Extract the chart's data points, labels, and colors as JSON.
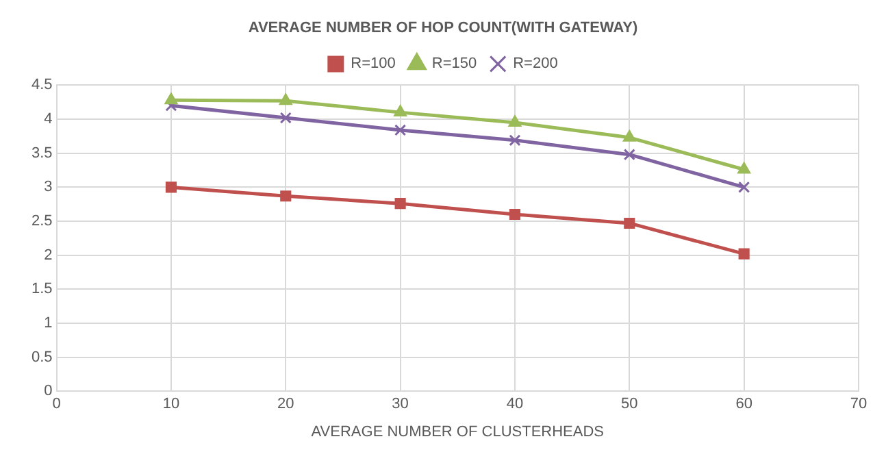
{
  "chart_data": {
    "type": "line",
    "title": "AVERAGE NUMBER OF HOP COUNT(WITH GATEWAY)",
    "xlabel": "AVERAGE NUMBER OF CLUSTERHEADS",
    "x": [
      10,
      20,
      30,
      40,
      50,
      60
    ],
    "series": [
      {
        "name": "R=100",
        "color": "#c0504d",
        "marker": "square",
        "values": [
          3,
          2.87,
          2.76,
          2.6,
          2.47,
          2.02
        ]
      },
      {
        "name": "R=150",
        "color": "#9bbb59",
        "marker": "triangle",
        "values": [
          4.28,
          4.27,
          4.1,
          3.95,
          3.73,
          3.26
        ]
      },
      {
        "name": "R=200",
        "color": "#8064a2",
        "marker": "cross",
        "values": [
          4.2,
          4.02,
          3.84,
          3.69,
          3.48,
          3.0
        ]
      }
    ],
    "xlim": [
      0,
      70
    ],
    "xticks": [
      0,
      10,
      20,
      30,
      40,
      50,
      60,
      70
    ],
    "ylim": [
      0,
      4.5
    ],
    "yticks": [
      0,
      0.5,
      1,
      1.5,
      2,
      2.5,
      3,
      3.5,
      4,
      4.5
    ],
    "grid": true,
    "legend": "top",
    "line_style": "solid"
  }
}
